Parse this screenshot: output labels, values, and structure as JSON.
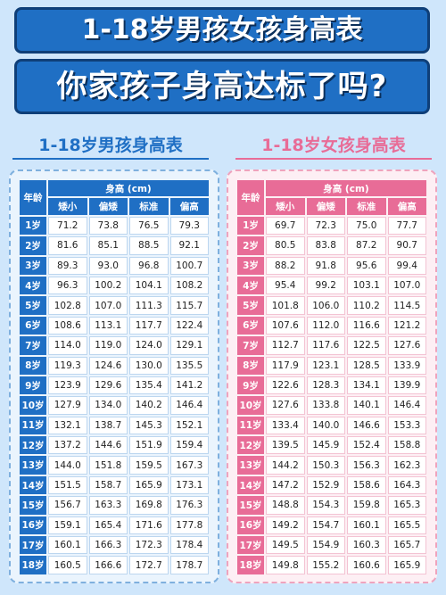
{
  "title_line1": "1-18岁男孩女孩身高表",
  "title_line2": "你家孩子身高达标了吗?",
  "boys": {
    "title": "1-18岁男孩身高表",
    "age_header": "年龄",
    "height_header": "身高 (cm)",
    "columns": [
      "矮小",
      "偏矮",
      "标准",
      "偏高"
    ],
    "rows": [
      [
        "1岁",
        "71.2",
        "73.8",
        "76.5",
        "79.3"
      ],
      [
        "2岁",
        "81.6",
        "85.1",
        "88.5",
        "92.1"
      ],
      [
        "3岁",
        "89.3",
        "93.0",
        "96.8",
        "100.7"
      ],
      [
        "4岁",
        "96.3",
        "100.2",
        "104.1",
        "108.2"
      ],
      [
        "5岁",
        "102.8",
        "107.0",
        "111.3",
        "115.7"
      ],
      [
        "6岁",
        "108.6",
        "113.1",
        "117.7",
        "122.4"
      ],
      [
        "7岁",
        "114.0",
        "119.0",
        "124.0",
        "129.1"
      ],
      [
        "8岁",
        "119.3",
        "124.6",
        "130.0",
        "135.5"
      ],
      [
        "9岁",
        "123.9",
        "129.6",
        "135.4",
        "141.2"
      ],
      [
        "10岁",
        "127.9",
        "134.0",
        "140.2",
        "146.4"
      ],
      [
        "11岁",
        "132.1",
        "138.7",
        "145.3",
        "152.1"
      ],
      [
        "12岁",
        "137.2",
        "144.6",
        "151.9",
        "159.4"
      ],
      [
        "13岁",
        "144.0",
        "151.8",
        "159.5",
        "167.3"
      ],
      [
        "14岁",
        "151.5",
        "158.7",
        "165.9",
        "173.1"
      ],
      [
        "15岁",
        "156.7",
        "163.3",
        "169.8",
        "176.3"
      ],
      [
        "16岁",
        "159.1",
        "165.4",
        "171.6",
        "177.8"
      ],
      [
        "17岁",
        "160.1",
        "166.3",
        "172.3",
        "178.4"
      ],
      [
        "18岁",
        "160.5",
        "166.6",
        "172.7",
        "178.7"
      ]
    ]
  },
  "girls": {
    "title": "1-18岁女孩身高表",
    "age_header": "年龄",
    "height_header": "身高 (cm)",
    "columns": [
      "矮小",
      "偏矮",
      "标准",
      "偏高"
    ],
    "rows": [
      [
        "1岁",
        "69.7",
        "72.3",
        "75.0",
        "77.7"
      ],
      [
        "2岁",
        "80.5",
        "83.8",
        "87.2",
        "90.7"
      ],
      [
        "3岁",
        "88.2",
        "91.8",
        "95.6",
        "99.4"
      ],
      [
        "4岁",
        "95.4",
        "99.2",
        "103.1",
        "107.0"
      ],
      [
        "5岁",
        "101.8",
        "106.0",
        "110.2",
        "114.5"
      ],
      [
        "6岁",
        "107.6",
        "112.0",
        "116.6",
        "121.2"
      ],
      [
        "7岁",
        "112.7",
        "117.6",
        "122.5",
        "127.6"
      ],
      [
        "8岁",
        "117.9",
        "123.1",
        "128.5",
        "133.9"
      ],
      [
        "9岁",
        "122.6",
        "128.3",
        "134.1",
        "139.9"
      ],
      [
        "10岁",
        "127.6",
        "133.8",
        "140.1",
        "146.4"
      ],
      [
        "11岁",
        "133.4",
        "140.0",
        "146.6",
        "153.3"
      ],
      [
        "12岁",
        "139.5",
        "145.9",
        "152.4",
        "158.8"
      ],
      [
        "13岁",
        "144.2",
        "150.3",
        "156.3",
        "162.3"
      ],
      [
        "14岁",
        "147.2",
        "152.9",
        "158.6",
        "164.3"
      ],
      [
        "15岁",
        "148.8",
        "154.3",
        "159.8",
        "165.3"
      ],
      [
        "16岁",
        "149.2",
        "154.7",
        "160.1",
        "165.5"
      ],
      [
        "17岁",
        "149.5",
        "154.9",
        "160.3",
        "165.7"
      ],
      [
        "18岁",
        "149.8",
        "155.2",
        "160.6",
        "165.9"
      ]
    ]
  }
}
